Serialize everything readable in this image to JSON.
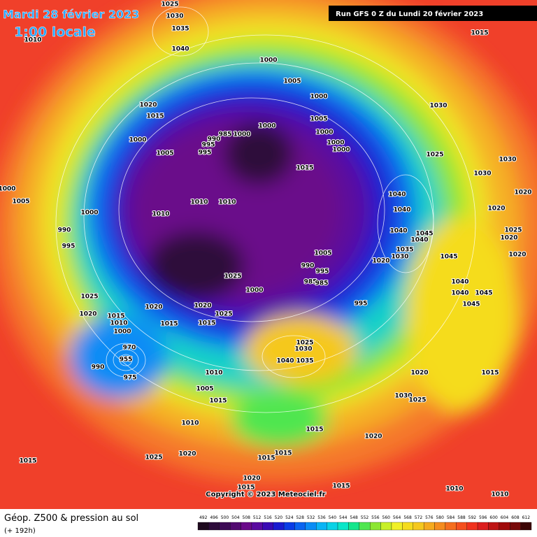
{
  "header": {
    "date": "Mardi 28 février 2023",
    "time": "1:00 locale",
    "run": "Run GFS 0 Z du Lundi 20 février 2023"
  },
  "copyright": "Copyright © 2023 Meteociel.fr",
  "footer": {
    "title": "Géop. Z500 & pression au sol",
    "subtitle": "(+ 192h)"
  },
  "scale": {
    "values": [
      492,
      496,
      500,
      504,
      508,
      512,
      516,
      520,
      524,
      528,
      532,
      536,
      540,
      544,
      548,
      552,
      556,
      560,
      564,
      568,
      572,
      576,
      580,
      584,
      588,
      592,
      596,
      600,
      604,
      608,
      612
    ],
    "colors": [
      "#1e0a1e",
      "#2d0b3a",
      "#3d0a55",
      "#520a70",
      "#6a0a8a",
      "#5a0aa0",
      "#3a0ab4",
      "#1a1ad0",
      "#0a3ce6",
      "#0a64f0",
      "#0a8cf5",
      "#0ab4f5",
      "#0ad2e6",
      "#0ae6c8",
      "#14e68c",
      "#50e650",
      "#8ce632",
      "#c8f028",
      "#f0f028",
      "#f5dc1e",
      "#f5c81e",
      "#f5aa1e",
      "#f58c1e",
      "#f56e1e",
      "#f5501e",
      "#f0321e",
      "#dc1e1e",
      "#be1414",
      "#a00a0a",
      "#780a0a",
      "#3c0505"
    ]
  },
  "pressure_labels": [
    1025,
    1030,
    1035,
    1040,
    1010,
    1015,
    1000,
    1005,
    1000,
    1005,
    1000,
    1000,
    1000,
    1030,
    1025,
    1030,
    1030,
    1020,
    1020,
    1025,
    1020,
    1020,
    1020,
    1015,
    1000,
    1005,
    995,
    995,
    990,
    985,
    1000,
    1000,
    1015,
    1040,
    1040,
    1040,
    1045,
    1040,
    1035,
    1030,
    1020,
    1045,
    1040,
    1040,
    1045,
    1045,
    1000,
    1005,
    1000,
    990,
    995,
    1010,
    1010,
    1010,
    1005,
    990,
    995,
    985,
    985,
    995,
    1000,
    1025,
    1025,
    1020,
    1020,
    1015,
    1010,
    1015,
    1020,
    1015,
    1025,
    1000,
    970,
    955,
    990,
    975,
    1025,
    1030,
    1040,
    1035,
    1010,
    1005,
    1015,
    1020,
    1030,
    1025,
    1015,
    1010,
    1015,
    1015,
    1015,
    1020,
    1025,
    1015,
    1020,
    1020,
    1015,
    1015,
    1010,
    1010
  ]
}
